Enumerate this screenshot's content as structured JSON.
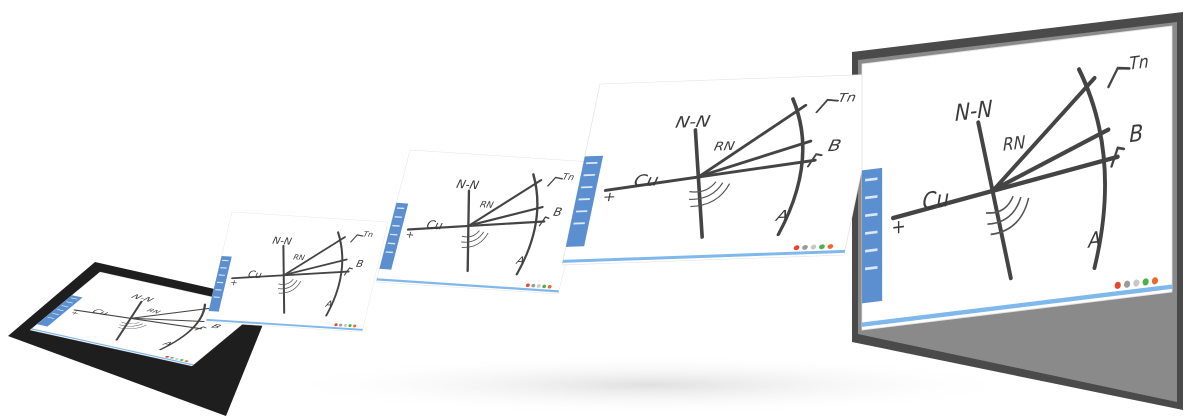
{
  "sketch": {
    "labels": {
      "top": "N-N",
      "left_sign": "+",
      "left": "Cu",
      "center": "RN",
      "top_right": "Tn",
      "right": "B",
      "bottom_right": "A"
    }
  }
}
